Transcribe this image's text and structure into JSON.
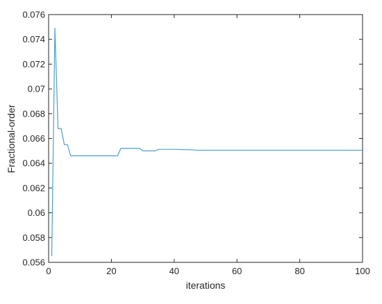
{
  "chart_data": {
    "type": "line",
    "title": "",
    "xlabel": "iterations",
    "ylabel": "Fractional-order",
    "xlim": [
      0,
      100
    ],
    "ylim": [
      0.056,
      0.076
    ],
    "xticks": [
      0,
      20,
      40,
      60,
      80,
      100
    ],
    "xtick_labels": [
      "0",
      "20",
      "40",
      "60",
      "80",
      "100"
    ],
    "yticks": [
      0.056,
      0.058,
      0.06,
      0.062,
      0.064,
      0.066,
      0.068,
      0.07,
      0.072,
      0.074,
      0.076
    ],
    "ytick_labels": [
      "0.056",
      "0.058",
      "0.06",
      "0.062",
      "0.064",
      "0.066",
      "0.068",
      "0.07",
      "0.072",
      "0.074",
      "0.076"
    ],
    "grid": false,
    "series": [
      {
        "color": "#4a9fcf",
        "x": [
          1,
          2,
          3,
          4,
          5,
          6,
          7,
          8,
          22,
          23,
          28,
          29,
          30,
          34,
          35,
          40,
          46,
          47,
          100
        ],
        "y": [
          0.0565,
          0.0749,
          0.0668,
          0.0668,
          0.0655,
          0.0655,
          0.0646,
          0.0646,
          0.0646,
          0.0652,
          0.0652,
          0.0652,
          0.065,
          0.065,
          0.06512,
          0.06512,
          0.06508,
          0.06505,
          0.06505
        ]
      }
    ]
  }
}
